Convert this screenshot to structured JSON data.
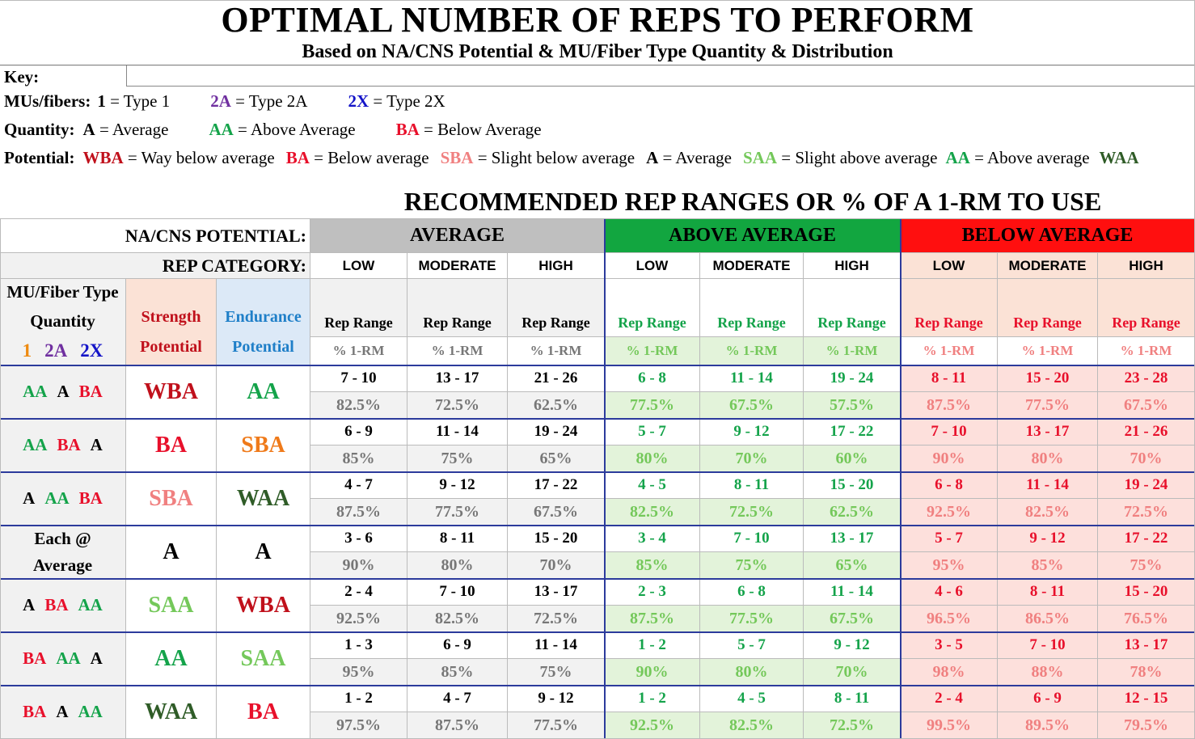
{
  "title": "OPTIMAL NUMBER OF REPS TO PERFORM",
  "subtitle": "Based on NA/CNS Potential & MU/Fiber Type Quantity & Distribution",
  "key": {
    "label": "Key:",
    "mus_label": "MUs/fibers:",
    "mus": [
      {
        "code": "1",
        "text": "= Type 1",
        "color": "#000000"
      },
      {
        "code": "2A",
        "text": "= Type 2A",
        "color": "#7030a0"
      },
      {
        "code": "2X",
        "text": "= Type 2X",
        "color": "#1414c8"
      }
    ],
    "quantity_label": "Quantity:",
    "quantity": [
      {
        "code": "A",
        "text": "= Average",
        "color": "#000000"
      },
      {
        "code": "AA",
        "text": "= Above Average",
        "color": "#14a34a"
      },
      {
        "code": "BA",
        "text": "= Below Average",
        "color": "#e8102b"
      }
    ],
    "potential_label": "Potential:",
    "potential": [
      {
        "code": "WBA",
        "text": "= Way below average",
        "color": "#c0101b"
      },
      {
        "code": "BA",
        "text": "= Below average",
        "color": "#e8102b"
      },
      {
        "code": "SBA",
        "text": "= Slight below average",
        "color": "#f08080"
      },
      {
        "code": "A",
        "text": "= Average",
        "color": "#000000"
      },
      {
        "code": "SAA",
        "text": "= Slight above average",
        "color": "#74c85a"
      },
      {
        "code": "AA",
        "text": "= Above average",
        "color": "#14a34a"
      },
      {
        "code": "WAA",
        "text": "",
        "color": "#2f5c27"
      }
    ]
  },
  "recommended_title": "RECOMMENDED REP RANGES OR % OF A 1-RM TO USE",
  "table": {
    "nacns_label": "NA/CNS POTENTIAL:",
    "rep_category_label": "REP CATEGORY:",
    "groups": [
      "AVERAGE",
      "ABOVE AVERAGE",
      "BELOW AVERAGE"
    ],
    "categories": [
      "LOW",
      "MODERATE",
      "HIGH"
    ],
    "col_header_mu_line1": "MU/Fiber Type",
    "col_header_mu_line2": "Quantity",
    "col_header_mu_codes": [
      "1",
      "2A",
      "2X"
    ],
    "col_header_strength": [
      "Strength",
      "Potential"
    ],
    "col_header_endurance": [
      "Endurance",
      "Potential"
    ],
    "rep_range_label": "Rep Range",
    "pct_label": "% 1-RM",
    "rows": [
      {
        "mu": [
          {
            "t": "AA",
            "c": "green"
          },
          {
            "t": "A",
            "c": "black"
          },
          {
            "t": "BA",
            "c": "red"
          }
        ],
        "strength": {
          "t": "WBA",
          "c": "dred"
        },
        "endurance": {
          "t": "AA",
          "c": "green"
        },
        "reps": [
          "7 - 10",
          "13 - 17",
          "21 - 26",
          "6 - 8",
          "11 - 14",
          "19 - 24",
          "8 - 11",
          "15 - 20",
          "23 - 28"
        ],
        "pct": [
          "82.5%",
          "72.5%",
          "62.5%",
          "77.5%",
          "67.5%",
          "57.5%",
          "87.5%",
          "77.5%",
          "67.5%"
        ]
      },
      {
        "mu": [
          {
            "t": "AA",
            "c": "green"
          },
          {
            "t": "BA",
            "c": "red"
          },
          {
            "t": "A",
            "c": "black"
          }
        ],
        "strength": {
          "t": "BA",
          "c": "red"
        },
        "endurance": {
          "t": "SBA",
          "c": "orange"
        },
        "reps": [
          "6 - 9",
          "11 - 14",
          "19 - 24",
          "5 - 7",
          "9 - 12",
          "17 - 22",
          "7 - 10",
          "13 - 17",
          "21 - 26"
        ],
        "pct": [
          "85%",
          "75%",
          "65%",
          "80%",
          "70%",
          "60%",
          "90%",
          "80%",
          "70%"
        ]
      },
      {
        "mu": [
          {
            "t": "A",
            "c": "black"
          },
          {
            "t": "AA",
            "c": "green"
          },
          {
            "t": "BA",
            "c": "red"
          }
        ],
        "strength": {
          "t": "SBA",
          "c": "pink"
        },
        "endurance": {
          "t": "WAA",
          "c": "dgreen"
        },
        "reps": [
          "4 - 7",
          "9 - 12",
          "17 - 22",
          "4 - 5",
          "8 - 11",
          "15 - 20",
          "6 - 8",
          "11 - 14",
          "19 - 24"
        ],
        "pct": [
          "87.5%",
          "77.5%",
          "67.5%",
          "82.5%",
          "72.5%",
          "62.5%",
          "92.5%",
          "82.5%",
          "72.5%"
        ]
      },
      {
        "mu_text": [
          "Each @",
          "Average"
        ],
        "strength": {
          "t": "A",
          "c": "black"
        },
        "endurance": {
          "t": "A",
          "c": "black"
        },
        "reps": [
          "3 - 6",
          "8 - 11",
          "15 - 20",
          "3 - 4",
          "7 - 10",
          "13 - 17",
          "5 - 7",
          "9 - 12",
          "17 - 22"
        ],
        "pct": [
          "90%",
          "80%",
          "70%",
          "85%",
          "75%",
          "65%",
          "95%",
          "85%",
          "75%"
        ]
      },
      {
        "mu": [
          {
            "t": "A",
            "c": "black"
          },
          {
            "t": "BA",
            "c": "red"
          },
          {
            "t": "AA",
            "c": "green"
          }
        ],
        "strength": {
          "t": "SAA",
          "c": "lgreen"
        },
        "endurance": {
          "t": "WBA",
          "c": "dred"
        },
        "reps": [
          "2 - 4",
          "7 - 10",
          "13 - 17",
          "2 - 3",
          "6 - 8",
          "11 - 14",
          "4 - 6",
          "8 - 11",
          "15 - 20"
        ],
        "pct": [
          "92.5%",
          "82.5%",
          "72.5%",
          "87.5%",
          "77.5%",
          "67.5%",
          "96.5%",
          "86.5%",
          "76.5%"
        ]
      },
      {
        "mu": [
          {
            "t": "BA",
            "c": "red"
          },
          {
            "t": "AA",
            "c": "green"
          },
          {
            "t": "A",
            "c": "black"
          }
        ],
        "strength": {
          "t": "AA",
          "c": "green"
        },
        "endurance": {
          "t": "SAA",
          "c": "lgreen"
        },
        "reps": [
          "1 - 3",
          "6 - 9",
          "11 - 14",
          "1 - 2",
          "5 - 7",
          "9 - 12",
          "3 - 5",
          "7 - 10",
          "13 - 17"
        ],
        "pct": [
          "95%",
          "85%",
          "75%",
          "90%",
          "80%",
          "70%",
          "98%",
          "88%",
          "78%"
        ]
      },
      {
        "mu": [
          {
            "t": "BA",
            "c": "red"
          },
          {
            "t": "A",
            "c": "black"
          },
          {
            "t": "AA",
            "c": "green"
          }
        ],
        "strength": {
          "t": "WAA",
          "c": "dgreen"
        },
        "endurance": {
          "t": "BA",
          "c": "red"
        },
        "reps": [
          "1 - 2",
          "4 - 7",
          "9 - 12",
          "1 - 2",
          "4 - 5",
          "8 - 11",
          "2 - 4",
          "6 - 9",
          "12 - 15"
        ],
        "pct": [
          "97.5%",
          "87.5%",
          "77.5%",
          "92.5%",
          "82.5%",
          "72.5%",
          "99.5%",
          "89.5%",
          "79.5%"
        ]
      }
    ]
  }
}
